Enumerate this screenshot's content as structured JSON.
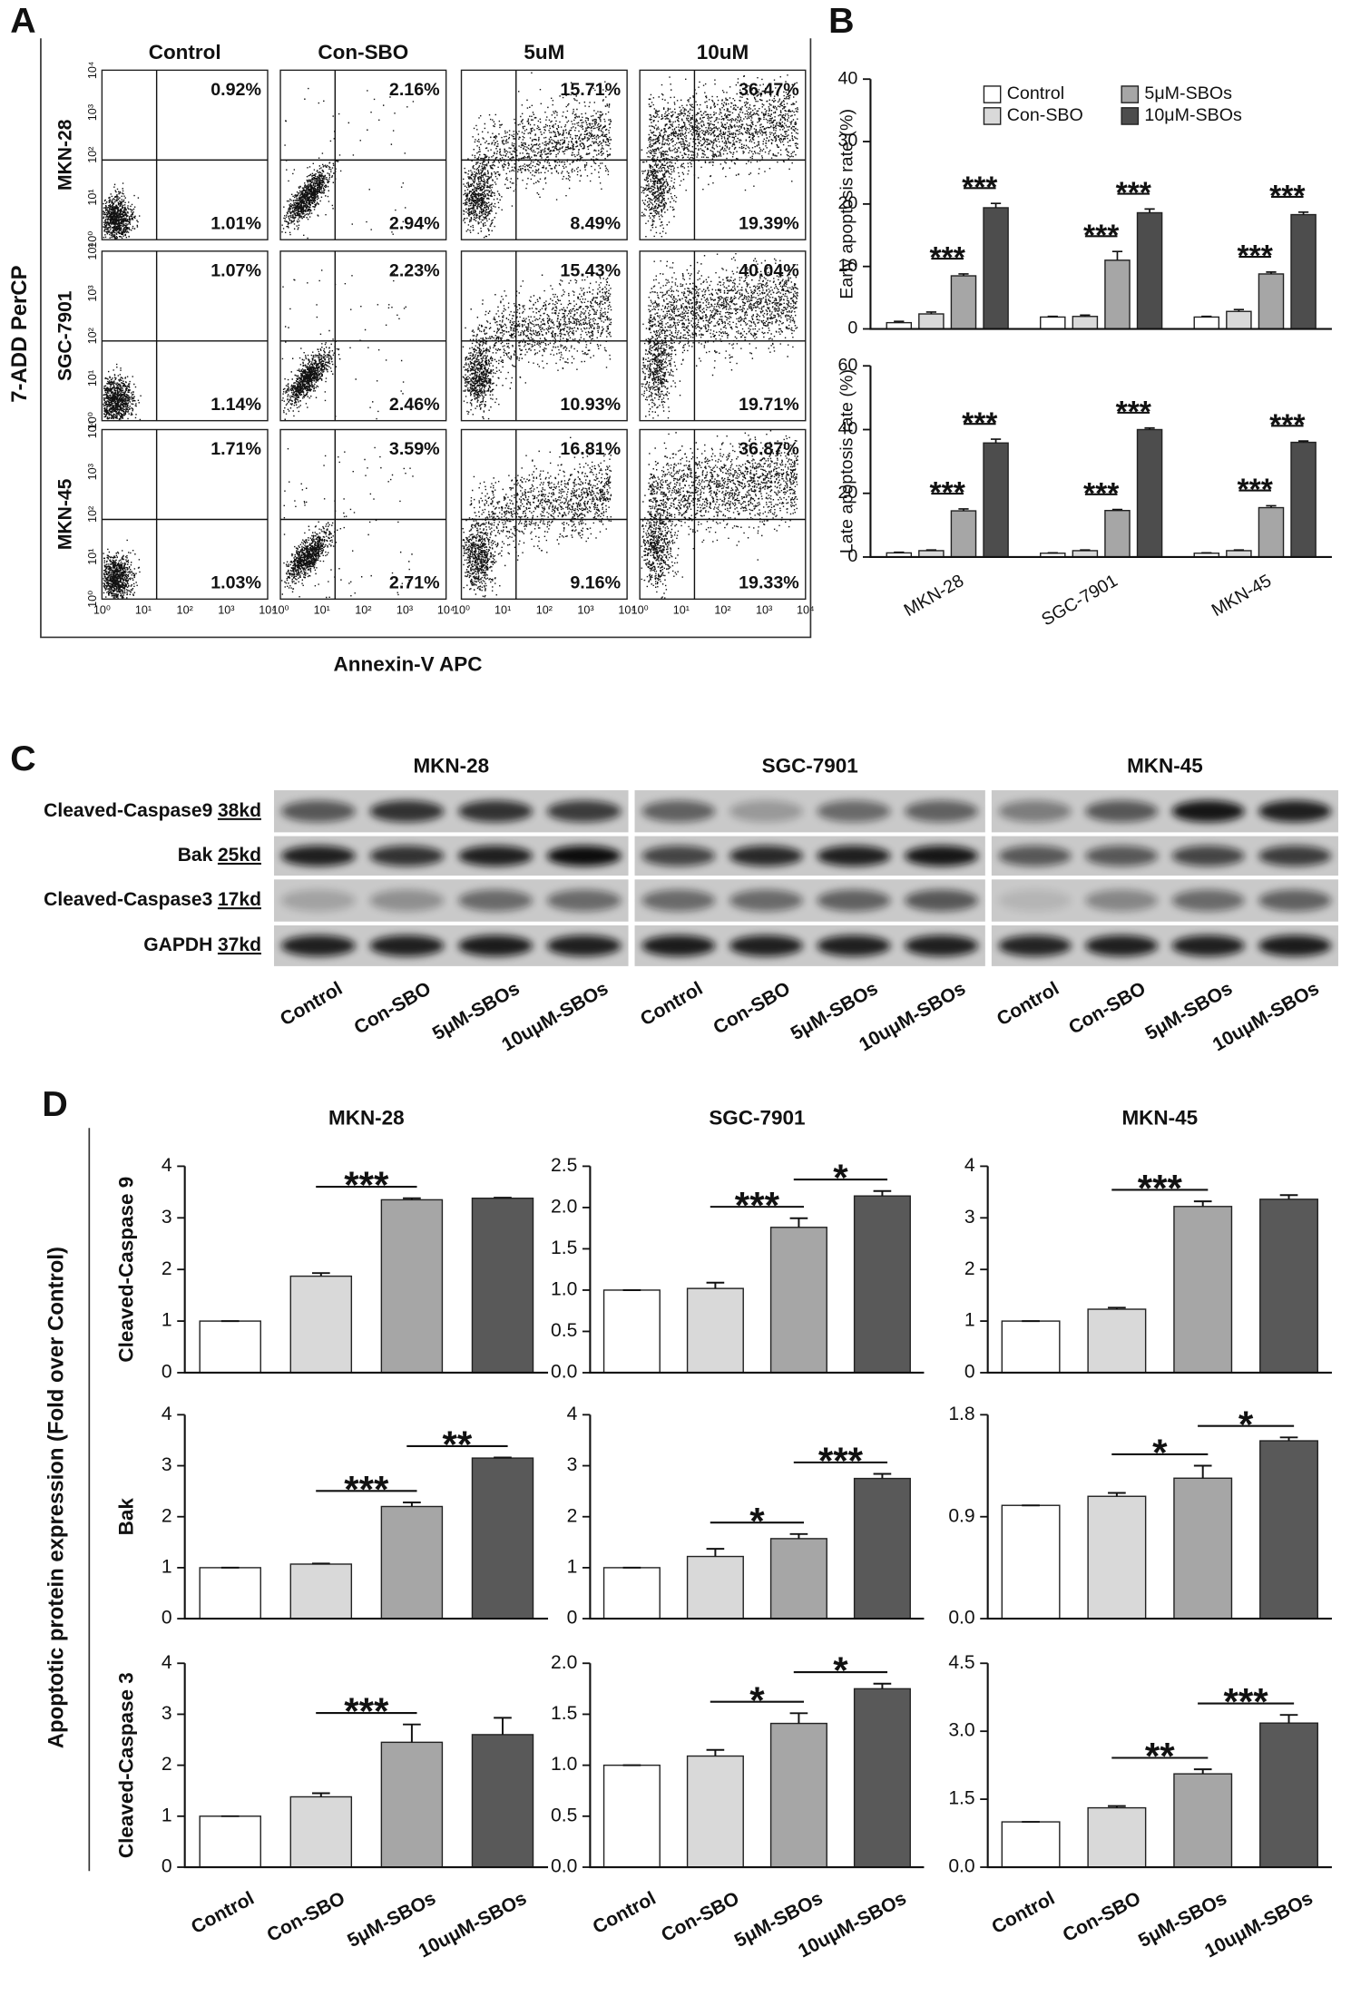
{
  "panels": [
    "A",
    "B",
    "C",
    "D"
  ],
  "flow": {
    "conditions": [
      "Control",
      "Con-SBO",
      "5uM",
      "10uM"
    ],
    "cell_lines": [
      "MKN-28",
      "SGC-7901",
      "MKN-45"
    ],
    "ylabel": "7-ADD PerCP",
    "xlabel": "Annexin-V APC",
    "axis_ticks": [
      "10⁰",
      "10¹",
      "10²",
      "10³",
      "10⁴"
    ],
    "quadrants": [
      [
        [
          "0.92%",
          "1.01%"
        ],
        [
          "2.16%",
          "2.94%"
        ],
        [
          "15.71%",
          "8.49%"
        ],
        [
          "36.47%",
          "19.39%"
        ]
      ],
      [
        [
          "1.07%",
          "1.14%"
        ],
        [
          "2.23%",
          "2.46%"
        ],
        [
          "15.43%",
          "10.93%"
        ],
        [
          "40.04%",
          "19.71%"
        ]
      ],
      [
        [
          "1.71%",
          "1.03%"
        ],
        [
          "3.59%",
          "2.71%"
        ],
        [
          "16.81%",
          "9.16%"
        ],
        [
          "36.87%",
          "19.33%"
        ]
      ]
    ]
  },
  "blot": {
    "cell_lines": [
      "MKN-28",
      "SGC-7901",
      "MKN-45"
    ],
    "proteins": [
      {
        "name": "Cleaved-Caspase9",
        "size": "38kd"
      },
      {
        "name": "Bak",
        "size": "25kd"
      },
      {
        "name": "Cleaved-Caspase3",
        "size": "17kd"
      },
      {
        "name": "GAPDH",
        "size": "37kd"
      }
    ],
    "lanes": [
      "Control",
      "Con-SBO",
      "5μM-SBOs",
      "10uμM-SBOs"
    ]
  },
  "panel_d": {
    "ylabel": "Apoptotic protein expression (Fold over Control)"
  },
  "chart_data": [
    {
      "type": "grouped_bar",
      "ylabel": "Early apoptosis rate (%)",
      "categories": [
        null,
        null,
        null
      ],
      "ylim": [
        0,
        40
      ],
      "yticks": [
        0,
        10,
        20,
        30,
        40
      ],
      "series": [
        {
          "name": "Control",
          "color": "#ffffff",
          "values": [
            1.0,
            1.9,
            1.9
          ],
          "errors": [
            0.2,
            0.1,
            0.1
          ]
        },
        {
          "name": "Con-SBO",
          "color": "#d9d9d9",
          "values": [
            2.4,
            2.0,
            2.8
          ],
          "errors": [
            0.3,
            0.2,
            0.3
          ]
        },
        {
          "name": "5μM-SBOs",
          "color": "#a6a6a6",
          "values": [
            8.5,
            11.0,
            8.8
          ],
          "errors": [
            0.3,
            1.4,
            0.3
          ]
        },
        {
          "name": "10μM-SBOs",
          "color": "#4d4d4d",
          "values": [
            19.4,
            18.6,
            18.3
          ],
          "errors": [
            0.7,
            0.6,
            0.4
          ]
        }
      ],
      "annotations": [
        "***",
        "***",
        "***",
        "***",
        "***",
        "***"
      ]
    },
    {
      "type": "grouped_bar",
      "ylabel": "Late apoptosis rate (%)",
      "categories": [
        "MKN-28",
        "SGC-7901",
        "MKN-45"
      ],
      "ylim": [
        0,
        60
      ],
      "yticks": [
        0,
        20,
        40,
        60
      ],
      "series": [
        {
          "color": "#ffffff",
          "values": [
            1.3,
            1.2,
            1.2
          ],
          "errors": [
            0.2,
            0.1,
            0.1
          ]
        },
        {
          "color": "#d9d9d9",
          "values": [
            2.0,
            2.0,
            2.0
          ],
          "errors": [
            0.2,
            0.2,
            0.2
          ]
        },
        {
          "color": "#a6a6a6",
          "values": [
            14.5,
            14.6,
            15.5
          ],
          "errors": [
            0.6,
            0.3,
            0.6
          ]
        },
        {
          "color": "#4d4d4d",
          "values": [
            35.8,
            40.0,
            36.0
          ],
          "errors": [
            1.2,
            0.5,
            0.4
          ]
        }
      ],
      "annotations": [
        "***",
        "***",
        "***",
        "***",
        "***",
        "***"
      ]
    },
    {
      "type": "bar",
      "title": "MKN-28",
      "ylabel": "Cleaved-Caspase 9",
      "categories": [
        null,
        null,
        null,
        null
      ],
      "values": [
        1,
        1.87,
        3.35,
        3.38
      ],
      "errors": [
        0,
        0.06,
        0.03,
        0.01
      ],
      "colors": [
        "#ffffff",
        "#d9d9d9",
        "#a6a6a6",
        "#595959"
      ],
      "ylim": [
        0,
        4
      ],
      "yticks": [
        0,
        1,
        2,
        3,
        4
      ],
      "annotations": [
        "***"
      ]
    },
    {
      "type": "bar",
      "title": "SGC-7901",
      "categories": [
        null,
        null,
        null,
        null
      ],
      "values": [
        1,
        1.02,
        1.76,
        2.14
      ],
      "errors": [
        0,
        0.07,
        0.11,
        0.06
      ],
      "colors": [
        "#ffffff",
        "#d9d9d9",
        "#a6a6a6",
        "#595959"
      ],
      "ylim": [
        0,
        2.5
      ],
      "yticks": [
        {
          "value": 0,
          "label": "0.0"
        },
        0.5,
        {
          "value": 1,
          "label": "1.0"
        },
        1.5,
        {
          "value": 2,
          "label": "2.0"
        },
        2.5
      ],
      "annotations": [
        "***",
        "*"
      ]
    },
    {
      "type": "bar",
      "title": "MKN-45",
      "categories": [
        null,
        null,
        null,
        null
      ],
      "values": [
        1,
        1.23,
        3.22,
        3.36
      ],
      "errors": [
        0,
        0.03,
        0.1,
        0.08
      ],
      "colors": [
        "#ffffff",
        "#d9d9d9",
        "#a6a6a6",
        "#595959"
      ],
      "ylim": [
        0,
        4
      ],
      "yticks": [
        0,
        1,
        2,
        3,
        4
      ],
      "annotations": [
        "***"
      ]
    },
    {
      "type": "bar",
      "ylabel": "Bak",
      "categories": [
        null,
        null,
        null,
        null
      ],
      "values": [
        1,
        1.07,
        2.2,
        3.15
      ],
      "errors": [
        0,
        0.01,
        0.08,
        0.01
      ],
      "colors": [
        "#ffffff",
        "#d9d9d9",
        "#a6a6a6",
        "#595959"
      ],
      "ylim": [
        0,
        4
      ],
      "yticks": [
        0,
        1,
        2,
        3,
        4
      ],
      "annotations": [
        "***",
        "**"
      ]
    },
    {
      "type": "bar",
      "categories": [
        null,
        null,
        null,
        null
      ],
      "values": [
        1,
        1.22,
        1.57,
        2.75
      ],
      "errors": [
        0,
        0.15,
        0.09,
        0.09
      ],
      "colors": [
        "#ffffff",
        "#d9d9d9",
        "#a6a6a6",
        "#595959"
      ],
      "ylim": [
        0,
        4
      ],
      "yticks": [
        0,
        1,
        2,
        3,
        4
      ],
      "annotations": [
        "*",
        "***"
      ]
    },
    {
      "type": "bar",
      "categories": [
        null,
        null,
        null,
        null
      ],
      "values": [
        1,
        1.08,
        1.24,
        1.57
      ],
      "errors": [
        0,
        0.03,
        0.11,
        0.03
      ],
      "colors": [
        "#ffffff",
        "#d9d9d9",
        "#a6a6a6",
        "#595959"
      ],
      "ylim": [
        0,
        1.8
      ],
      "yticks": [
        {
          "value": 0,
          "label": "0.0"
        },
        0.9,
        1.8
      ],
      "annotations": [
        "*",
        "*"
      ]
    },
    {
      "type": "bar",
      "ylabel": "Cleaved-Caspase 3",
      "categories": [
        "Control",
        "Con-SBO",
        "5μM-SBOs",
        "10uμM-SBOs"
      ],
      "values": [
        1,
        1.38,
        2.45,
        2.6
      ],
      "errors": [
        0,
        0.07,
        0.35,
        0.33
      ],
      "colors": [
        "#ffffff",
        "#d9d9d9",
        "#a6a6a6",
        "#595959"
      ],
      "ylim": [
        0,
        4
      ],
      "yticks": [
        0,
        1,
        2,
        3,
        4
      ],
      "annotations": [
        "***"
      ]
    },
    {
      "type": "bar",
      "categories": [
        "Control",
        "Con-SBO",
        "5μM-SBOs",
        "10uμM-SBOs"
      ],
      "values": [
        1,
        1.09,
        1.41,
        1.75
      ],
      "errors": [
        0,
        0.06,
        0.1,
        0.05
      ],
      "colors": [
        "#ffffff",
        "#d9d9d9",
        "#a6a6a6",
        "#595959"
      ],
      "ylim": [
        0,
        2
      ],
      "yticks": [
        {
          "value": 0,
          "label": "0.0"
        },
        0.5,
        {
          "value": 1,
          "label": "1.0"
        },
        1.5,
        {
          "value": 2,
          "label": "2.0"
        }
      ],
      "annotations": [
        "*",
        "*"
      ]
    },
    {
      "type": "bar",
      "categories": [
        "Control",
        "Con-SBO",
        "5μM-SBOs",
        "10uμM-SBOs"
      ],
      "values": [
        1,
        1.31,
        2.06,
        3.18
      ],
      "errors": [
        0,
        0.04,
        0.1,
        0.18
      ],
      "colors": [
        "#ffffff",
        "#d9d9d9",
        "#a6a6a6",
        "#595959"
      ],
      "ylim": [
        0,
        4.5
      ],
      "yticks": [
        {
          "value": 0,
          "label": "0.0"
        },
        1.5,
        {
          "value": 3,
          "label": "3.0"
        },
        4.5
      ],
      "annotations": [
        "**",
        "***"
      ]
    }
  ]
}
